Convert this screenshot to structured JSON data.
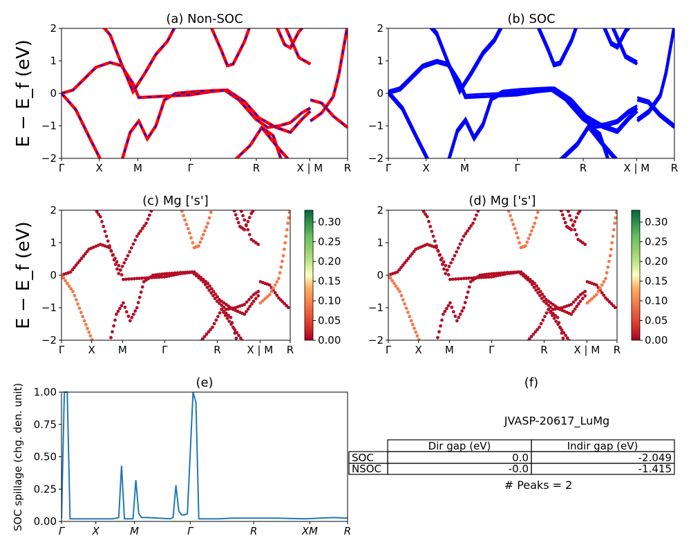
{
  "figure": {
    "ylabel_band": "E − E_f (eV)",
    "ylabel_band_sub": "f"
  },
  "chart_data": [
    {
      "id": "a",
      "type": "line",
      "title": "(a) Non-SOC",
      "xticks": [
        "Γ",
        "X",
        "M",
        "Γ",
        "R",
        "X | M",
        "R"
      ],
      "yticks": [
        "2",
        "1",
        "0",
        "−1",
        "−2"
      ],
      "ylim": [
        -2,
        2
      ],
      "series_colors": [
        "#ff0000",
        "#0000ff"
      ],
      "style": "red bands with blue dashes (SOC and non-SOC overlaid)"
    },
    {
      "id": "b",
      "type": "line",
      "title": "(b) SOC",
      "xticks": [
        "Γ",
        "X",
        "M",
        "Γ",
        "R",
        "X | M",
        "R"
      ],
      "yticks": [
        "2",
        "1",
        "0",
        "−1",
        "−2"
      ],
      "ylim": [
        -2,
        2
      ],
      "series_colors": [
        "#0000ff"
      ]
    },
    {
      "id": "c",
      "type": "scatter",
      "title": "(c)  Mg ['s']",
      "xticks": [
        "Γ",
        "X",
        "M",
        "Γ",
        "R",
        "X | M",
        "R"
      ],
      "yticks": [
        "2",
        "1",
        "0",
        "−1",
        "−2"
      ],
      "ylim": [
        -2,
        2
      ],
      "colorbar": {
        "ticks": [
          "0.30",
          "0.25",
          "0.20",
          "0.15",
          "0.10",
          "0.05",
          "0.00"
        ],
        "range": [
          0,
          0.33
        ],
        "cmap": "RdYlGn"
      }
    },
    {
      "id": "d",
      "type": "scatter",
      "title": "(d) Mg ['s']",
      "xticks": [
        "Γ",
        "X",
        "M",
        "Γ",
        "R",
        "X | M",
        "R"
      ],
      "yticks": [
        "2",
        "1",
        "0",
        "−1",
        "−2"
      ],
      "ylim": [
        -2,
        2
      ],
      "colorbar": {
        "ticks": [
          "0.30",
          "0.25",
          "0.20",
          "0.15",
          "0.10",
          "0.05",
          "0.00"
        ],
        "range": [
          0,
          0.33
        ],
        "cmap": "RdYlGn"
      }
    },
    {
      "id": "e",
      "type": "line",
      "title": "(e)",
      "ylabel": "SOC spillage (chg. den. unit)",
      "xticks": [
        "Γ",
        "X",
        "M",
        "Γ",
        "R",
        "XM",
        "R"
      ],
      "yticks": [
        "1.00",
        "0.75",
        "0.50",
        "0.25",
        "0.00"
      ],
      "ylim": [
        0,
        1.0
      ],
      "color": "#1f77b4",
      "x": [
        0,
        0.01,
        0.02,
        0.03,
        0.05,
        0.1,
        0.18,
        0.2,
        0.21,
        0.22,
        0.23,
        0.25,
        0.26,
        0.27,
        0.28,
        0.29,
        0.3,
        0.3,
        0.31,
        0.3,
        0.38,
        0.39,
        0.4,
        0.41,
        0.42,
        0.43,
        0.44,
        0.46,
        0.47,
        0.48,
        0.5,
        0.52,
        0.55,
        0.6,
        0.75,
        0.85,
        0.95,
        1.0
      ],
      "values": [
        0.02,
        1.0,
        1.0,
        0.02,
        0.02,
        0.02,
        0.02,
        0.03,
        0.43,
        0.02,
        0.02,
        0.02,
        0.32,
        0.06,
        0.03,
        0.03,
        0.03,
        0.03,
        0.03,
        0.03,
        0.02,
        0.03,
        0.28,
        0.08,
        0.05,
        0.05,
        0.06,
        1.0,
        0.92,
        0.02,
        0.02,
        0.02,
        0.02,
        0.025,
        0.025,
        0.02,
        0.03,
        0.025
      ]
    }
  ],
  "panel_f": {
    "title": "(f)",
    "material": "JVASP-20617_LuMg",
    "headers": [
      "",
      "Dir gap (eV)",
      "Indir gap (eV)"
    ],
    "rows": [
      {
        "label": "SOC",
        "dir": "0.0",
        "indir": "-2.049"
      },
      {
        "label": "NSOC",
        "dir": "-0.0",
        "indir": "-1.415"
      }
    ],
    "peaks": "# Peaks = 2"
  }
}
